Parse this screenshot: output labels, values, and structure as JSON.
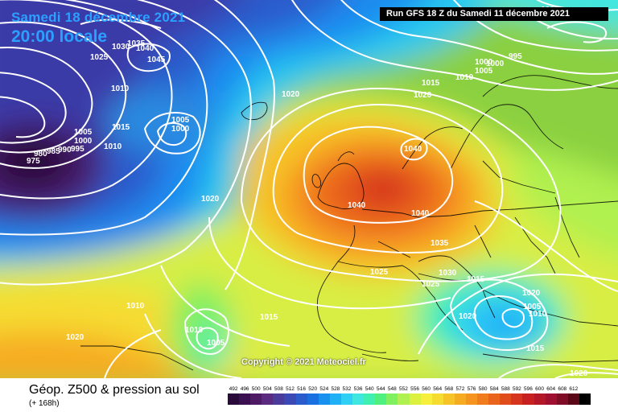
{
  "header": {
    "date_line": "Samedi 18 décembre 2021",
    "local_time": "20:00 locale",
    "run_info": "Run GFS 18 Z du Samedi 11 décembre 2021"
  },
  "map": {
    "copyright": "Copyright © 2021 Meteociel.fr",
    "isobar_labels": [
      {
        "id": "l1000a",
        "text": "1000"
      },
      {
        "id": "l995a",
        "text": "995"
      },
      {
        "id": "l1000b",
        "text": "1000"
      },
      {
        "id": "l1005a",
        "text": "1005"
      },
      {
        "id": "l1010a",
        "text": "1010"
      },
      {
        "id": "l1015a",
        "text": "1015"
      },
      {
        "id": "l1020a",
        "text": "1020"
      },
      {
        "id": "l1025a",
        "text": "1025"
      },
      {
        "id": "l1030a",
        "text": "1030"
      },
      {
        "id": "l1035a",
        "text": "1035"
      },
      {
        "id": "l1040a",
        "text": "1040"
      },
      {
        "id": "l1045a",
        "text": "1045"
      },
      {
        "id": "l1005b",
        "text": "1005"
      },
      {
        "id": "l1000c",
        "text": "1000"
      },
      {
        "id": "l1015b",
        "text": "1015"
      },
      {
        "id": "l1010b",
        "text": "1010"
      },
      {
        "id": "l1005c",
        "text": "1005"
      },
      {
        "id": "l1000d",
        "text": "1000"
      },
      {
        "id": "l995b",
        "text": "995"
      },
      {
        "id": "l990",
        "text": "990"
      },
      {
        "id": "l985",
        "text": "985"
      },
      {
        "id": "l980",
        "text": "980"
      },
      {
        "id": "l975",
        "text": "975"
      },
      {
        "id": "l1040b",
        "text": "1040"
      },
      {
        "id": "l1040c",
        "text": "1040"
      },
      {
        "id": "l1040d",
        "text": "1040"
      },
      {
        "id": "l1015c",
        "text": "1015"
      },
      {
        "id": "l1020b",
        "text": "1020"
      },
      {
        "id": "l1010c",
        "text": "1010"
      },
      {
        "id": "l1005d",
        "text": "1005"
      },
      {
        "id": "l1000e",
        "text": "1000"
      },
      {
        "id": "l1035b",
        "text": "1035"
      },
      {
        "id": "l1030b",
        "text": "1030"
      },
      {
        "id": "l1025b",
        "text": "1025"
      },
      {
        "id": "l1025c",
        "text": "1025"
      },
      {
        "id": "l1020c",
        "text": "1020"
      },
      {
        "id": "l1010d",
        "text": "1010"
      },
      {
        "id": "l1020d",
        "text": "1020"
      },
      {
        "id": "l1010e",
        "text": "1010"
      },
      {
        "id": "l1005e",
        "text": "1005"
      },
      {
        "id": "l1015d",
        "text": "1015"
      },
      {
        "id": "l1020e",
        "text": "1020"
      },
      {
        "id": "l1010f",
        "text": "1010"
      },
      {
        "id": "l1015e",
        "text": "1015"
      },
      {
        "id": "l1020f",
        "text": "1020"
      },
      {
        "id": "l1020g",
        "text": "1020"
      }
    ]
  },
  "footer": {
    "title": "Géop. Z500 & pression au sol",
    "subtitle": "(+ 168h)",
    "scale": [
      {
        "label": "492",
        "color": "#2a0a3a"
      },
      {
        "label": "496",
        "color": "#3c1050"
      },
      {
        "label": "500",
        "color": "#4e1a66"
      },
      {
        "label": "504",
        "color": "#5a2a80"
      },
      {
        "label": "508",
        "color": "#4a3a9a"
      },
      {
        "label": "512",
        "color": "#3a4ab4"
      },
      {
        "label": "516",
        "color": "#2a5ccc"
      },
      {
        "label": "520",
        "color": "#1a70e0"
      },
      {
        "label": "524",
        "color": "#1890f0"
      },
      {
        "label": "528",
        "color": "#20b0f6"
      },
      {
        "label": "532",
        "color": "#30d0f6"
      },
      {
        "label": "536",
        "color": "#40e6e0"
      },
      {
        "label": "540",
        "color": "#40f0b0"
      },
      {
        "label": "544",
        "color": "#50f080"
      },
      {
        "label": "548",
        "color": "#80f060"
      },
      {
        "label": "552",
        "color": "#b0f050"
      },
      {
        "label": "556",
        "color": "#dcf040"
      },
      {
        "label": "560",
        "color": "#f6f03c"
      },
      {
        "label": "564",
        "color": "#f6dc30"
      },
      {
        "label": "568",
        "color": "#f6c428"
      },
      {
        "label": "572",
        "color": "#f6ac22"
      },
      {
        "label": "576",
        "color": "#f69420"
      },
      {
        "label": "580",
        "color": "#f07c1e"
      },
      {
        "label": "584",
        "color": "#ea641c"
      },
      {
        "label": "588",
        "color": "#e04c1c"
      },
      {
        "label": "592",
        "color": "#d6341e"
      },
      {
        "label": "596",
        "color": "#c82020"
      },
      {
        "label": "600",
        "color": "#b41828"
      },
      {
        "label": "604",
        "color": "#a01030"
      },
      {
        "label": "608",
        "color": "#800c28"
      },
      {
        "label": "612",
        "color": "#5a0818"
      },
      {
        "label": "",
        "color": "#000000"
      }
    ]
  }
}
